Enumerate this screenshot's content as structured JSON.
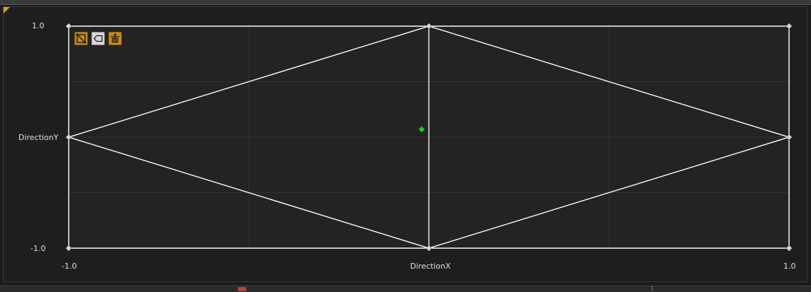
{
  "editor": {
    "x_axis": {
      "name": "DirectionX",
      "min_label": "-1.0",
      "max_label": "1.0"
    },
    "y_axis": {
      "name": "DirectionY",
      "min_label": "-1.0",
      "max_label": "1.0"
    }
  },
  "toolbar": [
    {
      "icon": "triangulation-icon",
      "active": true
    },
    {
      "icon": "label-tag-icon",
      "active": false
    },
    {
      "icon": "snap-to-grid-icon",
      "active": true
    }
  ],
  "chart_data": {
    "type": "scatter",
    "xlabel": "DirectionX",
    "ylabel": "DirectionY",
    "xlim": [
      -1.0,
      1.0
    ],
    "ylim": [
      -1.0,
      1.0
    ],
    "sample_points": [
      {
        "x": -1.0,
        "y": 1.0
      },
      {
        "x": 0.0,
        "y": 1.0
      },
      {
        "x": 1.0,
        "y": 1.0
      },
      {
        "x": -1.0,
        "y": 0.0
      },
      {
        "x": 1.0,
        "y": 0.0
      },
      {
        "x": -1.0,
        "y": -1.0
      },
      {
        "x": 0.0,
        "y": -1.0
      },
      {
        "x": 1.0,
        "y": -1.0
      }
    ],
    "triangles": [
      [
        [
          -1.0,
          1.0
        ],
        [
          0.0,
          1.0
        ],
        [
          -1.0,
          0.0
        ]
      ],
      [
        [
          -1.0,
          0.0
        ],
        [
          0.0,
          1.0
        ],
        [
          0.0,
          -1.0
        ]
      ],
      [
        [
          -1.0,
          0.0
        ],
        [
          0.0,
          -1.0
        ],
        [
          -1.0,
          -1.0
        ]
      ],
      [
        [
          0.0,
          1.0
        ],
        [
          1.0,
          1.0
        ],
        [
          1.0,
          0.0
        ]
      ],
      [
        [
          0.0,
          1.0
        ],
        [
          1.0,
          0.0
        ],
        [
          0.0,
          -1.0
        ]
      ],
      [
        [
          0.0,
          -1.0
        ],
        [
          1.0,
          0.0
        ],
        [
          1.0,
          -1.0
        ]
      ]
    ],
    "preview_point": {
      "x": -0.02,
      "y": 0.07
    },
    "colors": {
      "background": "#232323",
      "grid": "#333333",
      "edges": "#ffffff",
      "sample_marker": "#d8d8d8",
      "preview_marker": "#22cc22",
      "active_button": "#c8891a"
    },
    "grid": true
  }
}
